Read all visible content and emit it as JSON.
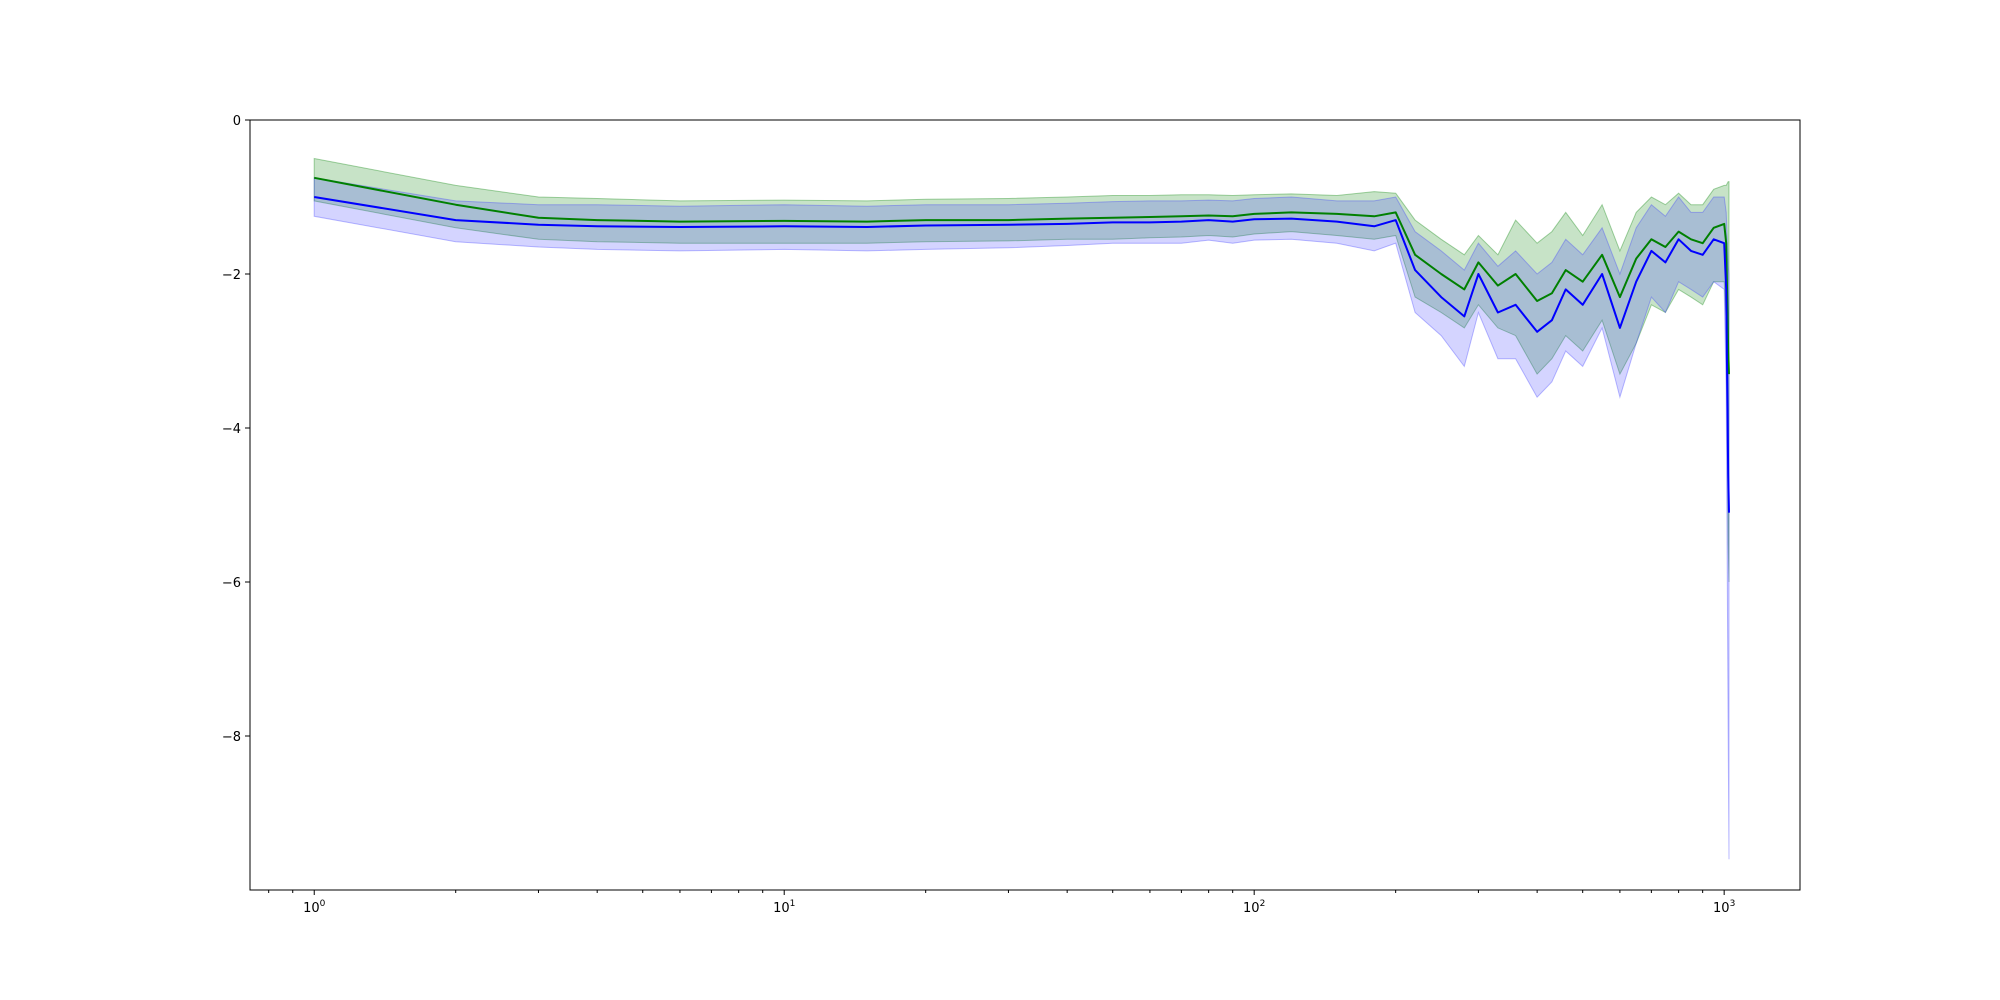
{
  "chart_data": {
    "type": "line",
    "title": "",
    "xlabel": "",
    "ylabel": "",
    "xscale": "log",
    "xlim": [
      0.73,
      1450
    ],
    "ylim": [
      -10,
      0
    ],
    "grid": false,
    "x_ticks": [
      {
        "base": "10",
        "exp": "0"
      },
      {
        "base": "10",
        "exp": "1"
      },
      {
        "base": "10",
        "exp": "2"
      },
      {
        "base": "10",
        "exp": "3"
      }
    ],
    "y_ticks": [
      "0",
      "−2",
      "−4",
      "−6",
      "−8"
    ],
    "series": [
      {
        "color": "#008000",
        "band_color": "#008000",
        "x": [
          1,
          2,
          3,
          4,
          6,
          10,
          15,
          20,
          30,
          40,
          50,
          60,
          70,
          80,
          90,
          100,
          120,
          150,
          180,
          200,
          220,
          250,
          280,
          300,
          330,
          360,
          400,
          430,
          460,
          500,
          550,
          600,
          650,
          700,
          750,
          800,
          850,
          900,
          950,
          1000,
          1010,
          1020,
          1024
        ],
        "mean": [
          -0.75,
          -1.1,
          -1.27,
          -1.3,
          -1.32,
          -1.31,
          -1.32,
          -1.3,
          -1.3,
          -1.28,
          -1.27,
          -1.26,
          -1.25,
          -1.24,
          -1.25,
          -1.22,
          -1.2,
          -1.22,
          -1.25,
          -1.2,
          -1.75,
          -2.0,
          -2.2,
          -1.85,
          -2.15,
          -2.0,
          -2.35,
          -2.25,
          -1.95,
          -2.1,
          -1.75,
          -2.3,
          -1.8,
          -1.55,
          -1.65,
          -1.45,
          -1.55,
          -1.6,
          -1.4,
          -1.35,
          -1.6,
          -3.0,
          -3.3
        ],
        "upper": [
          -0.5,
          -0.85,
          -1.0,
          -1.02,
          -1.05,
          -1.04,
          -1.05,
          -1.03,
          -1.02,
          -1.0,
          -0.98,
          -0.98,
          -0.97,
          -0.97,
          -0.98,
          -0.97,
          -0.96,
          -0.98,
          -0.93,
          -0.95,
          -1.3,
          -1.55,
          -1.75,
          -1.5,
          -1.75,
          -1.3,
          -1.6,
          -1.45,
          -1.2,
          -1.5,
          -1.1,
          -1.7,
          -1.2,
          -1.0,
          -1.1,
          -0.95,
          -1.1,
          -1.1,
          -0.9,
          -0.85,
          -0.85,
          -0.8,
          -0.8
        ],
        "lower": [
          -1.05,
          -1.4,
          -1.55,
          -1.58,
          -1.6,
          -1.6,
          -1.6,
          -1.58,
          -1.57,
          -1.55,
          -1.55,
          -1.53,
          -1.52,
          -1.5,
          -1.52,
          -1.48,
          -1.45,
          -1.5,
          -1.55,
          -1.5,
          -2.3,
          -2.5,
          -2.7,
          -2.4,
          -2.7,
          -2.8,
          -3.3,
          -3.1,
          -2.8,
          -3.0,
          -2.6,
          -3.3,
          -2.9,
          -2.4,
          -2.5,
          -2.2,
          -2.3,
          -2.4,
          -2.1,
          -2.1,
          -2.6,
          -5.5,
          -6.0
        ]
      },
      {
        "color": "#0000ff",
        "band_color": "#3b3bff",
        "x": [
          1,
          2,
          3,
          4,
          6,
          10,
          15,
          20,
          30,
          40,
          50,
          60,
          70,
          80,
          90,
          100,
          120,
          150,
          180,
          200,
          220,
          250,
          280,
          300,
          330,
          360,
          400,
          430,
          460,
          500,
          550,
          600,
          650,
          700,
          750,
          800,
          850,
          900,
          950,
          1000,
          1010,
          1020,
          1024
        ],
        "mean": [
          -1.0,
          -1.3,
          -1.36,
          -1.38,
          -1.39,
          -1.38,
          -1.39,
          -1.37,
          -1.36,
          -1.35,
          -1.33,
          -1.33,
          -1.32,
          -1.3,
          -1.32,
          -1.29,
          -1.28,
          -1.32,
          -1.38,
          -1.3,
          -1.95,
          -2.3,
          -2.55,
          -2.0,
          -2.5,
          -2.4,
          -2.75,
          -2.6,
          -2.2,
          -2.4,
          -2.0,
          -2.7,
          -2.1,
          -1.7,
          -1.85,
          -1.55,
          -1.7,
          -1.75,
          -1.55,
          -1.6,
          -2.2,
          -4.6,
          -5.1
        ],
        "upper": [
          -0.75,
          -1.05,
          -1.1,
          -1.1,
          -1.12,
          -1.1,
          -1.12,
          -1.1,
          -1.1,
          -1.08,
          -1.06,
          -1.05,
          -1.05,
          -1.04,
          -1.05,
          -1.02,
          -1.0,
          -1.05,
          -1.05,
          -1.0,
          -1.45,
          -1.7,
          -1.95,
          -1.6,
          -1.9,
          -1.7,
          -2.0,
          -1.85,
          -1.55,
          -1.75,
          -1.4,
          -2.0,
          -1.4,
          -1.1,
          -1.25,
          -1.0,
          -1.2,
          -1.2,
          -1.0,
          -1.0,
          -1.2,
          -1.9,
          -2.0
        ],
        "lower": [
          -1.25,
          -1.58,
          -1.65,
          -1.68,
          -1.7,
          -1.68,
          -1.7,
          -1.68,
          -1.66,
          -1.63,
          -1.6,
          -1.6,
          -1.6,
          -1.56,
          -1.6,
          -1.56,
          -1.55,
          -1.6,
          -1.7,
          -1.6,
          -2.5,
          -2.8,
          -3.2,
          -2.5,
          -3.1,
          -3.1,
          -3.6,
          -3.4,
          -3.0,
          -3.2,
          -2.7,
          -3.6,
          -2.9,
          -2.3,
          -2.5,
          -2.1,
          -2.2,
          -2.3,
          -2.1,
          -2.2,
          -3.5,
          -8.0,
          -9.6
        ]
      }
    ]
  }
}
